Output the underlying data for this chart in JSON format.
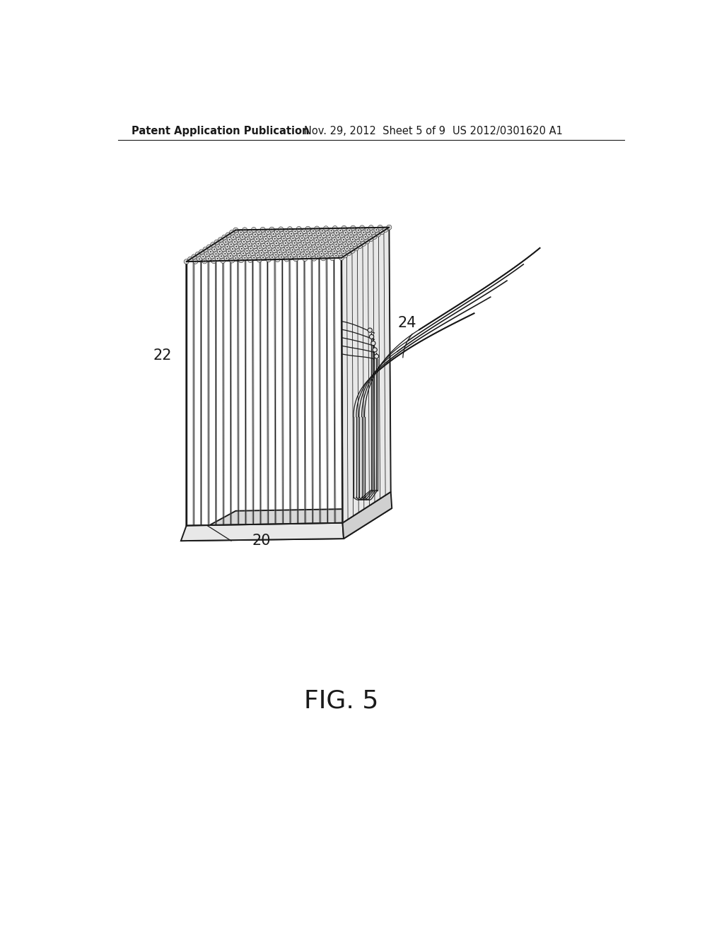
{
  "bg_color": "#ffffff",
  "line_color": "#1a1a1a",
  "header_left": "Patent Application Publication",
  "header_mid": "Nov. 29, 2012  Sheet 5 of 9",
  "header_right": "US 2012/0301620 A1",
  "figure_label": "FIG. 5",
  "label_22": "22",
  "label_20": "20",
  "label_24": "24",
  "header_fontsize": 10.5,
  "label_fontsize": 15,
  "fig_label_fontsize": 26
}
